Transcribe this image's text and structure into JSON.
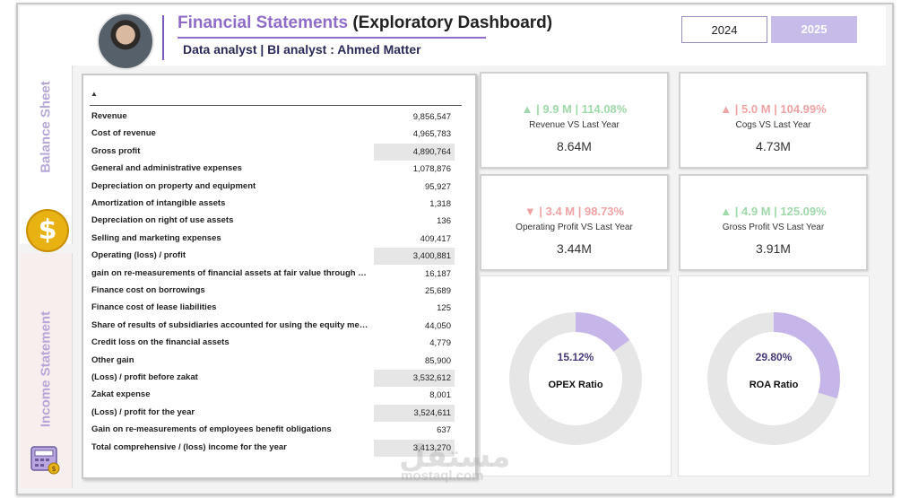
{
  "header": {
    "title_accent": "Financial Statements",
    "title_rest": "(Exploratory Dashboard)",
    "subtitle": "Data analyst | BI analyst : Ahmed Matter",
    "years": [
      "2024",
      "2025"
    ],
    "selected_year": "2025"
  },
  "sidebar": {
    "top_label": "Balance Sheet",
    "bottom_label": "Income Statement",
    "icons": [
      "dollar-coin-icon",
      "calculator-icon"
    ]
  },
  "table": {
    "rows": [
      {
        "label": "Revenue",
        "value": "9,856,547",
        "highlight": false
      },
      {
        "label": "Cost of revenue",
        "value": "4,965,783",
        "highlight": false
      },
      {
        "label": "Gross profit",
        "value": "4,890,764",
        "highlight": true
      },
      {
        "label": "General and administrative expenses",
        "value": "1,078,876",
        "highlight": false
      },
      {
        "label": "Depreciation on property and equipment",
        "value": "95,927",
        "highlight": false
      },
      {
        "label": "Amortization of intangible assets",
        "value": "1,318",
        "highlight": false
      },
      {
        "label": "Depreciation on right of use assets",
        "value": "136",
        "highlight": false
      },
      {
        "label": "Selling and marketing expenses",
        "value": "409,417",
        "highlight": false
      },
      {
        "label": "Operating (loss) / profit",
        "value": "3,400,881",
        "highlight": true
      },
      {
        "label": "gain  on re-measurements of financial assets at fair value through pr...",
        "value": "16,187",
        "highlight": false
      },
      {
        "label": "Finance cost on borrowings",
        "value": "25,689",
        "highlight": false
      },
      {
        "label": "Finance cost of lease liabilities",
        "value": "125",
        "highlight": false
      },
      {
        "label": "Share of results of subsidiaries accounted for using the equity metho...",
        "value": "44,050",
        "highlight": false
      },
      {
        "label": "Credit loss on the financial assets",
        "value": "4,779",
        "highlight": false
      },
      {
        "label": "Other gain",
        "value": "85,900",
        "highlight": false
      },
      {
        "label": "(Loss) / profit before zakat",
        "value": "3,532,612",
        "highlight": true
      },
      {
        "label": "Zakat expense",
        "value": "8,001",
        "highlight": false
      },
      {
        "label": "(Loss) / profit for the year",
        "value": "3,524,611",
        "highlight": true
      },
      {
        "label": "Gain on re-measurements of employees benefit obligations",
        "value": "637",
        "highlight": false
      },
      {
        "label": "Total comprehensive / (loss) income for the year",
        "value": "3,413,270",
        "highlight": true
      }
    ]
  },
  "kpis": [
    {
      "delta": "▲ | 9.9 M | 114.08%",
      "label": "Revenue VS Last Year",
      "value": "8.64M",
      "color": "#9fd9a9"
    },
    {
      "delta": "▲ | 5.0 M | 104.99%",
      "label": "Cogs VS Last Year",
      "value": "4.73M",
      "color": "#f0a3a3"
    },
    {
      "delta": "▼ | 3.4 M | 98.73%",
      "label": "Operating Profit VS Last Year",
      "value": "3.44M",
      "color": "#f0a3a3"
    },
    {
      "delta": "▲ | 4.9 M | 125.09%",
      "label": "Gross Profit VS Last Year",
      "value": "3.91M",
      "color": "#9fd9a9"
    }
  ],
  "donuts": [
    {
      "pct_text": "15.12%",
      "fraction": 0.1512,
      "label": "OPEX Ratio"
    },
    {
      "pct_text": "29.80%",
      "fraction": 0.298,
      "label": "ROA Ratio"
    }
  ],
  "colors": {
    "accent": "#8e6cc8",
    "donut_fill": "#c6b5e8",
    "donut_track": "#e6e6e6"
  },
  "watermark": {
    "arabic": "مستقل",
    "latin": "mostaql.com"
  }
}
